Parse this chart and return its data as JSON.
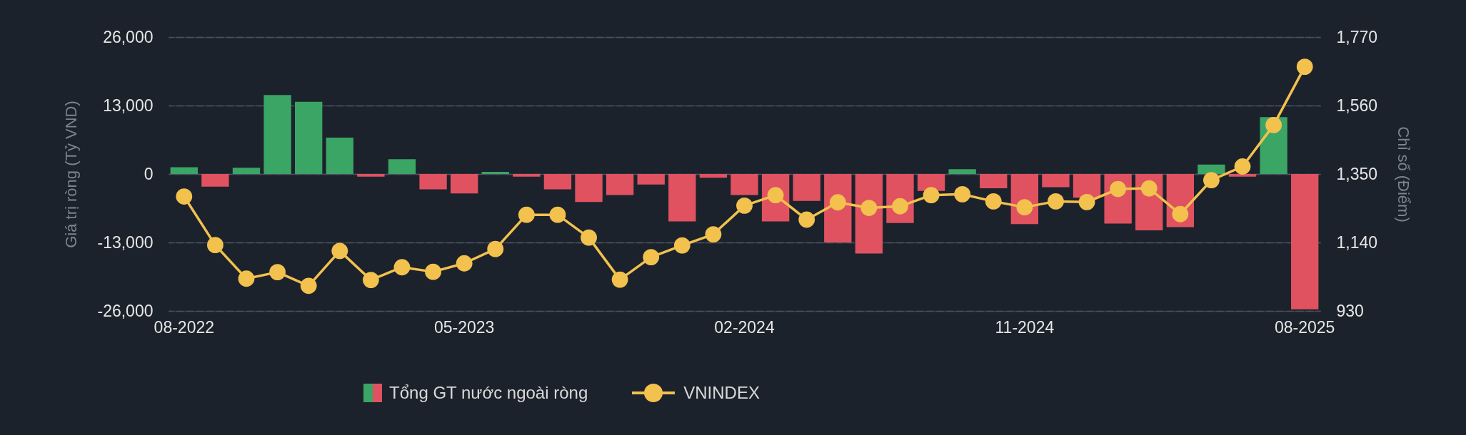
{
  "chart_data": {
    "type": "bar",
    "categories": [
      "08-2022",
      null,
      null,
      null,
      null,
      null,
      null,
      null,
      null,
      "05-2023",
      null,
      null,
      null,
      null,
      null,
      null,
      null,
      null,
      "02-2024",
      null,
      null,
      null,
      null,
      null,
      null,
      null,
      null,
      "11-2024",
      null,
      null,
      null,
      null,
      null,
      null,
      null,
      null,
      "08-2025"
    ],
    "series": [
      {
        "name": "Tổng GT nước ngoài ròng",
        "values": [
          1300,
          -2400,
          1200,
          15000,
          13700,
          6900,
          -500,
          2800,
          -2900,
          -3700,
          400,
          -500,
          -2900,
          -5300,
          -4000,
          -2000,
          -9000,
          -700,
          -4000,
          -9000,
          -5100,
          -13000,
          -15100,
          -9300,
          -3200,
          900,
          -2700,
          -9500,
          -2500,
          -4500,
          -9400,
          -10700,
          -10100,
          1800,
          -500,
          10800,
          -25700
        ],
        "colors": [
          "#3aa564",
          "#e05260",
          "#3aa564",
          "#3aa564",
          "#3aa564",
          "#3aa564",
          "#e05260",
          "#3aa564",
          "#e05260",
          "#e05260",
          "#3aa564",
          "#e05260",
          "#e05260",
          "#e05260",
          "#e05260",
          "#e05260",
          "#e05260",
          "#e05260",
          "#e05260",
          "#e05260",
          "#e05260",
          "#e05260",
          "#e05260",
          "#e05260",
          "#e05260",
          "#3aa564",
          "#e05260",
          "#e05260",
          "#e05260",
          "#e05260",
          "#e05260",
          "#e05260",
          "#e05260",
          "#3aa564",
          "#e05260",
          "#3aa564",
          "#e05260"
        ]
      },
      {
        "name": "VNINDEX",
        "type": "line",
        "axis": "y2",
        "color": "#f2c14e",
        "values": [
          1281,
          1132,
          1029,
          1049,
          1007,
          1114,
          1025,
          1064,
          1050,
          1076,
          1120,
          1225,
          1225,
          1155,
          1026,
          1095,
          1131,
          1165,
          1253,
          1285,
          1210,
          1263,
          1246,
          1251,
          1285,
          1288,
          1266,
          1248,
          1266,
          1264,
          1304,
          1306,
          1227,
          1331,
          1373,
          1500,
          1679
        ]
      }
    ],
    "ylabel": "Giá trị ròng (Tỷ VND)",
    "y2label": "Chỉ số (Điểm)",
    "ylim": [
      -26000,
      26000
    ],
    "yticks": [
      {
        "value": -26000,
        "label": "-26,000"
      },
      {
        "value": -13000,
        "label": "-13,000"
      },
      0,
      {
        "value": 13000,
        "label": "13,000"
      },
      {
        "value": 26000,
        "label": "26,000"
      }
    ],
    "y2lim": [
      930,
      1770
    ],
    "y2ticks": [
      930,
      {
        "value": 1140,
        "label": "1,140"
      },
      {
        "value": 1350,
        "label": "1,350"
      },
      {
        "value": 1560,
        "label": "1,560"
      },
      {
        "value": 1770,
        "label": "1,770"
      }
    ],
    "grid": "y",
    "legend": "bottom",
    "marker": "circle"
  }
}
